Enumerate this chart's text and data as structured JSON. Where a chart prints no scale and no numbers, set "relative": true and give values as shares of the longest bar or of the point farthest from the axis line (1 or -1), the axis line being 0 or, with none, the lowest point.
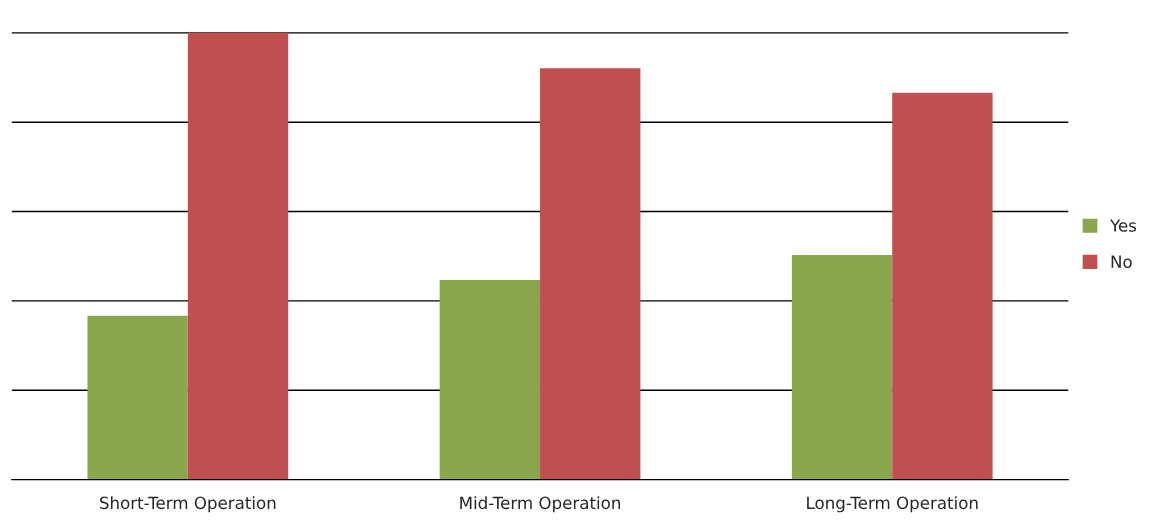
{
  "chart_data": {
    "type": "bar",
    "relative": true,
    "categories": [
      "Short-Term Operation",
      "Mid-Term Operation",
      "Long-Term Operation"
    ],
    "series": [
      {
        "name": "Yes",
        "color": "#8ba74e",
        "values": [
          0.367,
          0.447,
          0.503
        ]
      },
      {
        "name": "No",
        "color": "#c0504f",
        "values": [
          1,
          0.921,
          0.866
        ]
      }
    ],
    "grid": "y",
    "legend": "right"
  }
}
